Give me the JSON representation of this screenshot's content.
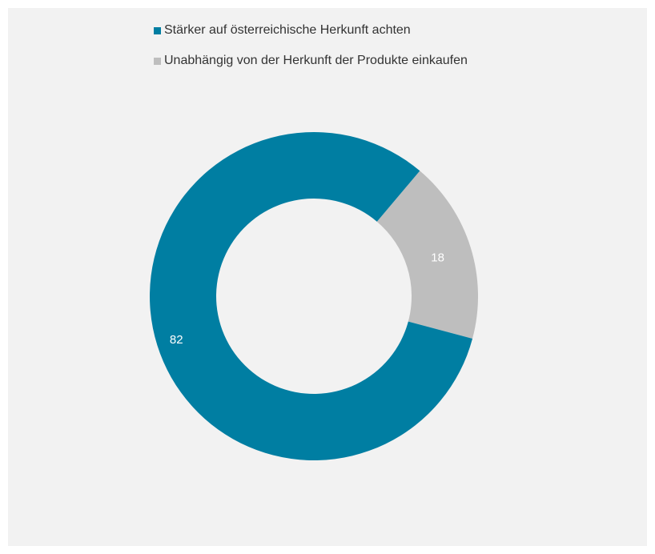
{
  "chart_data": {
    "type": "pie",
    "variant": "donut",
    "categories": [
      "Stärker auf österreichische Herkunft achten",
      "Unabhängig von der Herkunft der Produkte einkaufen"
    ],
    "values": [
      82,
      18
    ],
    "colors": [
      "#007ea2",
      "#bebebe"
    ],
    "legend": {
      "position": "top-center",
      "entries": [
        "Stärker auf österreichische Herkunft achten",
        "Unabhängig von der Herkunft der Produkte einkaufen"
      ]
    },
    "data_labels": [
      "82",
      "18"
    ],
    "label_color": "#ffffff",
    "background": "#f2f2f2"
  }
}
